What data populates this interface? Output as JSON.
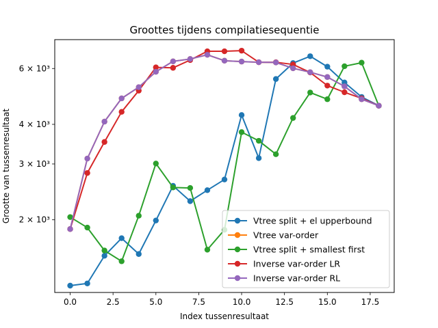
{
  "chart_data": {
    "type": "line",
    "title": "Groottes tijdens compilatiesequentie",
    "xlabel": "Index tussenresultaat",
    "ylabel": "Grootte van tussenresultaat",
    "yscale": "log",
    "xlim": [
      -0.9,
      18.9
    ],
    "ylim": [
      1180,
      7400
    ],
    "x_ticks": [
      0,
      2.5,
      5,
      7.5,
      10,
      12.5,
      15,
      17.5
    ],
    "x_tick_labels": [
      "0.0",
      "2.5",
      "5.0",
      "7.5",
      "10.0",
      "12.5",
      "15.0",
      "17.5"
    ],
    "y_ticks": [
      2000,
      3000,
      4000,
      6000
    ],
    "y_tick_labels": [
      "2 × 10³",
      "3 × 10³",
      "4 × 10³",
      "6 × 10³"
    ],
    "grid": false,
    "legend_position": "lower-right",
    "x": [
      0,
      1,
      2,
      3,
      4,
      5,
      6,
      7,
      8,
      9,
      10,
      11,
      12,
      13,
      14,
      15,
      16,
      17,
      18
    ],
    "series": [
      {
        "name": "Vtree split + el upperbound",
        "color": "#1f77b4",
        "values": [
          1240,
          1260,
          1540,
          1750,
          1560,
          1990,
          2560,
          2290,
          2480,
          2680,
          4280,
          3130,
          5560,
          6240,
          6560,
          6080,
          5420,
          4880,
          4580
        ]
      },
      {
        "name": "Vtree var-order",
        "color": "#ff7f0e",
        "values": [
          1870,
          3120,
          4080,
          4830,
          5240,
          5860,
          6320,
          6430,
          6630,
          6350,
          6310,
          6280,
          6270,
          6010,
          5840,
          5640,
          5270,
          4800,
          4580
        ]
      },
      {
        "name": "Vtree split + smallest first",
        "color": "#2ca02c",
        "values": [
          2040,
          1890,
          1600,
          1480,
          2060,
          3010,
          2530,
          2520,
          1610,
          1860,
          3780,
          3550,
          3220,
          4190,
          5040,
          4800,
          6100,
          6260,
          4580
        ]
      },
      {
        "name": "Inverse var-order LR",
        "color": "#d62728",
        "values": [
          1870,
          2810,
          3520,
          4380,
          5110,
          6050,
          6030,
          6380,
          6800,
          6800,
          6830,
          6280,
          6280,
          6180,
          5830,
          5300,
          5050,
          4830,
          4580
        ]
      },
      {
        "name": "Inverse var-order RL",
        "color": "#9467bd",
        "values": [
          1870,
          3120,
          4080,
          4830,
          5240,
          5860,
          6320,
          6430,
          6630,
          6350,
          6310,
          6280,
          6270,
          6010,
          5840,
          5640,
          5270,
          4800,
          4580
        ]
      }
    ]
  }
}
